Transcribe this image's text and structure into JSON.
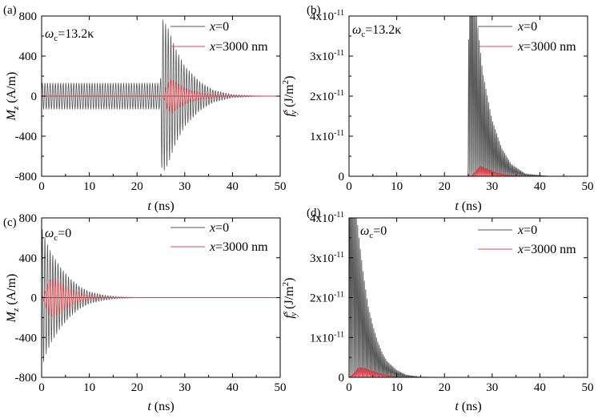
{
  "panels": [
    {
      "id": "a",
      "panel_label": "(a)",
      "condition": "ω_c=13.2κ",
      "condition_main": "ω",
      "condition_sub": "c",
      "condition_rest": "=13.2κ",
      "ylabel_main": "M",
      "ylabel_sub": "z",
      "ylabel_unit": " (A/m)",
      "xlabel_main": "t",
      "xlabel_unit": " (ns)",
      "legend": [
        {
          "name_main": "x",
          "name_rest": "=0",
          "color": "#555555"
        },
        {
          "name_main": "x",
          "name_rest": "=3000 nm",
          "color": "#e8474f"
        }
      ]
    },
    {
      "id": "b",
      "panel_label": "(b)",
      "condition_main": "ω",
      "condition_sub": "c",
      "condition_rest": "=13.2κ",
      "ylabel_main": "f",
      "ylabel_sup": "s",
      "ylabel_sub": "y",
      "ylabel_unit": " (J/m",
      "ylabel_unit_sup": "2",
      "ylabel_unit_end": ")",
      "xlabel_main": "t",
      "xlabel_unit": " (ns)",
      "legend": [
        {
          "name_main": "x",
          "name_rest": "=0",
          "color": "#555555"
        },
        {
          "name_main": "x",
          "name_rest": "=3000 nm",
          "color": "#e8474f"
        }
      ]
    },
    {
      "id": "c",
      "panel_label": "(c)",
      "condition_main": "ω",
      "condition_sub": "c",
      "condition_rest": "=0",
      "ylabel_main": "M",
      "ylabel_sub": "z",
      "ylabel_unit": " (A/m)",
      "xlabel_main": "t",
      "xlabel_unit": " (ns)",
      "legend": [
        {
          "name_main": "x",
          "name_rest": "=0",
          "color": "#555555"
        },
        {
          "name_main": "x",
          "name_rest": "=3000 nm",
          "color": "#e8474f"
        }
      ]
    },
    {
      "id": "d",
      "panel_label": "(d)",
      "condition_main": "ω",
      "condition_sub": "c",
      "condition_rest": "=0",
      "ylabel_main": "f",
      "ylabel_sup": "s",
      "ylabel_sub": "y",
      "ylabel_unit": " (J/m",
      "ylabel_unit_sup": "2",
      "ylabel_unit_end": ")",
      "xlabel_main": "t",
      "xlabel_unit": " (ns)",
      "legend": [
        {
          "name_main": "x",
          "name_rest": "=0",
          "color": "#555555"
        },
        {
          "name_main": "x",
          "name_rest": "=3000 nm",
          "color": "#e8474f"
        }
      ]
    }
  ],
  "chart_data": [
    {
      "type": "line",
      "panel": "a",
      "xlim": [
        0,
        50
      ],
      "ylim": [
        -800,
        800
      ],
      "xticks": [
        "0",
        "10",
        "20",
        "30",
        "40",
        "50"
      ],
      "yticks": [
        "-800",
        "-400",
        "0",
        "400",
        "800"
      ],
      "series": [
        {
          "name": "x=0",
          "color": "#555555",
          "description": "steady oscillation amplitude ~130 A/m for t<25 ns, burst peaking ~780 A/m at t≈25 ns, decaying to 0 by ~40 ns",
          "envelope": [
            [
              0,
              130
            ],
            [
              24.9,
              130
            ],
            [
              25.2,
              780
            ],
            [
              26.5,
              680
            ],
            [
              28,
              480
            ],
            [
              30,
              300
            ],
            [
              33,
              150
            ],
            [
              36,
              60
            ],
            [
              40,
              15
            ],
            [
              45,
              2
            ],
            [
              50,
              0
            ]
          ],
          "period_ns": 0.55
        },
        {
          "name": "x=3000 nm",
          "color": "#e8474f",
          "description": "near zero until ~25.5 ns, burst of ~170 A/m around 27 ns, decaying by ~38 ns",
          "envelope": [
            [
              0,
              0
            ],
            [
              25.5,
              0
            ],
            [
              26.2,
              120
            ],
            [
              27.2,
              170
            ],
            [
              29,
              110
            ],
            [
              31,
              60
            ],
            [
              34,
              25
            ],
            [
              38,
              5
            ],
            [
              50,
              0
            ]
          ],
          "period_ns": 0.55
        }
      ]
    },
    {
      "type": "line",
      "panel": "b",
      "xlim": [
        0,
        50
      ],
      "ylim": [
        0,
        4e-11
      ],
      "xticks": [
        "0",
        "10",
        "20",
        "30",
        "40",
        "50"
      ],
      "yticks": [
        "0",
        "1x10-11",
        "2x10-11",
        "3x10-11",
        "4x10-11"
      ],
      "series": [
        {
          "name": "x=0",
          "color": "#555555",
          "description": "zero until ~25 ns, peaks exceed 4e-11 at 25–26.5 ns, decaying to zero by ~37 ns",
          "envelope": [
            [
              0,
              0
            ],
            [
              24.9,
              0
            ],
            [
              25.2,
              6e-11
            ],
            [
              26.5,
              4.3e-11
            ],
            [
              28,
              2.6e-11
            ],
            [
              30,
              1.4e-11
            ],
            [
              32,
              7e-12
            ],
            [
              34,
              3e-12
            ],
            [
              37,
              6e-13
            ],
            [
              42,
              0
            ],
            [
              50,
              0
            ]
          ],
          "period_ns": 0.28
        },
        {
          "name": "x=3000 nm",
          "color": "#e8474f",
          "description": "small bump ~2.5e-12 around 27–29 ns",
          "envelope": [
            [
              0,
              0
            ],
            [
              25.5,
              0
            ],
            [
              26.5,
              1.2e-12
            ],
            [
              27.5,
              2.5e-12
            ],
            [
              29,
              1.8e-12
            ],
            [
              31,
              8e-13
            ],
            [
              34,
              2e-13
            ],
            [
              37,
              0
            ],
            [
              50,
              0
            ]
          ],
          "period_ns": 0.28
        }
      ]
    },
    {
      "type": "line",
      "panel": "c",
      "xlim": [
        0,
        50
      ],
      "ylim": [
        -800,
        800
      ],
      "xticks": [
        "0",
        "10",
        "20",
        "30",
        "40",
        "50"
      ],
      "yticks": [
        "-800",
        "-400",
        "0",
        "400",
        "800"
      ],
      "series": [
        {
          "name": "x=0",
          "color": "#555555",
          "description": "decaying oscillation starting ~700 A/m at t≈0, decaying to zero by ~18 ns",
          "envelope": [
            [
              0,
              700
            ],
            [
              1,
              560
            ],
            [
              2,
              450
            ],
            [
              4,
              300
            ],
            [
              6,
              190
            ],
            [
              8,
              110
            ],
            [
              10,
              60
            ],
            [
              13,
              25
            ],
            [
              16,
              8
            ],
            [
              20,
              1
            ],
            [
              50,
              0
            ]
          ],
          "period_ns": 0.55
        },
        {
          "name": "x=3000 nm",
          "color": "#e8474f",
          "description": "burst of ~200 A/m around 2–3 ns, decaying by ~12 ns",
          "envelope": [
            [
              0,
              0
            ],
            [
              0.5,
              40
            ],
            [
              1.5,
              170
            ],
            [
              2.5,
              200
            ],
            [
              4,
              150
            ],
            [
              6,
              90
            ],
            [
              8,
              45
            ],
            [
              10,
              18
            ],
            [
              13,
              4
            ],
            [
              16,
              0
            ],
            [
              50,
              0
            ]
          ],
          "period_ns": 0.55
        }
      ]
    },
    {
      "type": "line",
      "panel": "d",
      "xlim": [
        0,
        50
      ],
      "ylim": [
        0,
        4e-11
      ],
      "xticks": [
        "0",
        "10",
        "20",
        "30",
        "40",
        "50"
      ],
      "yticks": [
        "0",
        "1x10-11",
        "2x10-11",
        "3x10-11",
        "4x10-11"
      ],
      "series": [
        {
          "name": "x=0",
          "color": "#555555",
          "description": "peaks exceed 4e-11 at t<1.5 ns, decaying to zero by ~12 ns",
          "envelope": [
            [
              0,
              6.5e-11
            ],
            [
              1,
              4.8e-11
            ],
            [
              2,
              3.6e-11
            ],
            [
              3,
              2.6e-11
            ],
            [
              4,
              1.8e-11
            ],
            [
              5,
              1.3e-11
            ],
            [
              6,
              9e-12
            ],
            [
              7,
              6e-12
            ],
            [
              8,
              4e-12
            ],
            [
              10,
              1.8e-12
            ],
            [
              12,
              6e-13
            ],
            [
              15,
              1e-13
            ],
            [
              18,
              0
            ],
            [
              50,
              0
            ]
          ],
          "period_ns": 0.28
        },
        {
          "name": "x=3000 nm",
          "color": "#e8474f",
          "description": "small bump ~2.5e-12 around 2–4 ns",
          "envelope": [
            [
              0,
              0
            ],
            [
              1,
              1e-12
            ],
            [
              2,
              2.5e-12
            ],
            [
              3.5,
              2.2e-12
            ],
            [
              5,
              1.5e-12
            ],
            [
              7,
              8e-13
            ],
            [
              9,
              3e-13
            ],
            [
              12,
              0
            ],
            [
              50,
              0
            ]
          ],
          "period_ns": 0.28
        }
      ]
    }
  ]
}
